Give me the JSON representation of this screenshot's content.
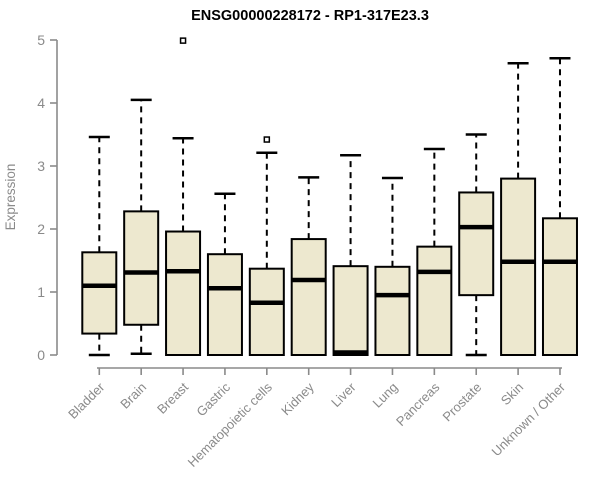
{
  "title": "ENSG00000228172 - RP1-317E23.3",
  "chart_data": {
    "type": "boxplot",
    "title": "ENSG00000228172 - RP1-317E23.3",
    "xlabel": "",
    "ylabel": "Expression",
    "ylim": [
      0,
      5
    ],
    "yticks": [
      0,
      1,
      2,
      3,
      4,
      5
    ],
    "grid": false,
    "legend": "none",
    "colors": {
      "box_fill": "#EDE8CF",
      "box_border": "#000000",
      "median": "#000000",
      "whisker": "#000000",
      "axis": "#8a8a8a",
      "axis_text": "#8a8a8a",
      "title_text": "#000000",
      "background": "#ffffff"
    },
    "categories": [
      "Bladder",
      "Brain",
      "Breast",
      "Gastric",
      "Hematopoietic cells",
      "Kidney",
      "Liver",
      "Lung",
      "Pancreas",
      "Prostate",
      "Skin",
      "Unknown / Other"
    ],
    "boxes": [
      {
        "category": "Bladder",
        "whisker_low": 0.0,
        "q1": 0.34,
        "median": 1.1,
        "q3": 1.63,
        "whisker_high": 3.46,
        "outliers": []
      },
      {
        "category": "Brain",
        "whisker_low": 0.02,
        "q1": 0.48,
        "median": 1.31,
        "q3": 2.28,
        "whisker_high": 4.05,
        "outliers": []
      },
      {
        "category": "Breast",
        "whisker_low": 0.0,
        "q1": 0.0,
        "median": 1.33,
        "q3": 1.96,
        "whisker_high": 3.44,
        "outliers": [
          4.99
        ]
      },
      {
        "category": "Gastric",
        "whisker_low": 0.0,
        "q1": 0.0,
        "median": 1.06,
        "q3": 1.6,
        "whisker_high": 2.56,
        "outliers": []
      },
      {
        "category": "Hematopoietic cells",
        "whisker_low": 0.0,
        "q1": 0.0,
        "median": 0.83,
        "q3": 1.37,
        "whisker_high": 3.21,
        "outliers": [
          3.42
        ]
      },
      {
        "category": "Kidney",
        "whisker_low": 0.0,
        "q1": 0.0,
        "median": 1.19,
        "q3": 1.84,
        "whisker_high": 2.82,
        "outliers": []
      },
      {
        "category": "Liver",
        "whisker_low": 0.0,
        "q1": 0.0,
        "median": 0.04,
        "q3": 1.41,
        "whisker_high": 3.17,
        "outliers": []
      },
      {
        "category": "Lung",
        "whisker_low": 0.0,
        "q1": 0.0,
        "median": 0.95,
        "q3": 1.4,
        "whisker_high": 2.81,
        "outliers": []
      },
      {
        "category": "Pancreas",
        "whisker_low": 0.0,
        "q1": 0.0,
        "median": 1.32,
        "q3": 1.72,
        "whisker_high": 3.27,
        "outliers": []
      },
      {
        "category": "Prostate",
        "whisker_low": 0.0,
        "q1": 0.95,
        "median": 2.03,
        "q3": 2.58,
        "whisker_high": 3.5,
        "outliers": []
      },
      {
        "category": "Skin",
        "whisker_low": 0.0,
        "q1": 0.0,
        "median": 1.48,
        "q3": 2.8,
        "whisker_high": 4.63,
        "outliers": []
      },
      {
        "category": "Unknown / Other",
        "whisker_low": 0.0,
        "q1": 0.0,
        "median": 1.48,
        "q3": 2.17,
        "whisker_high": 4.71,
        "outliers": []
      }
    ]
  }
}
